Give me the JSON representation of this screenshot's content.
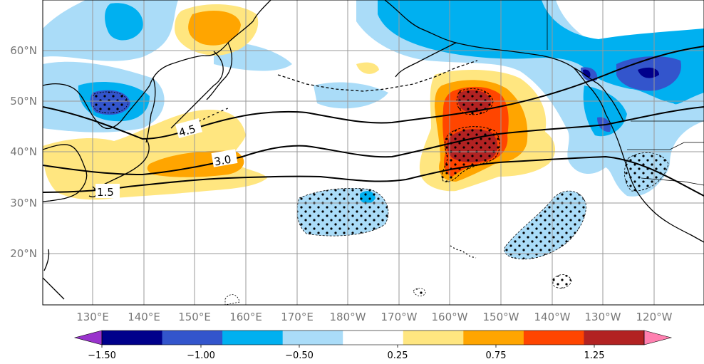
{
  "map": {
    "latitude_labels": [
      "60°N",
      "50°N",
      "40°N",
      "30°N",
      "20°N"
    ],
    "longitude_labels": [
      "130°E",
      "140°E",
      "150°E",
      "160°E",
      "170°E",
      "180°W",
      "170°W",
      "160°W",
      "150°W",
      "140°W",
      "130°W",
      "120°W"
    ],
    "contour_labels": [
      "4.5",
      "3.0",
      "1.5"
    ],
    "stippling": "dots mark significant regions"
  },
  "colorbar": {
    "tick_labels": [
      "−1.50",
      "−1.00",
      "−0.50",
      "0.25",
      "0.75",
      "1.25"
    ],
    "colors": [
      "#9933cc",
      "#00008b",
      "#3355cc",
      "#00b0f0",
      "#aadcf8",
      "#ffffff",
      "#ffe680",
      "#ffa500",
      "#ff4500",
      "#b22222",
      "#ff80b0"
    ],
    "extend": "both"
  }
}
